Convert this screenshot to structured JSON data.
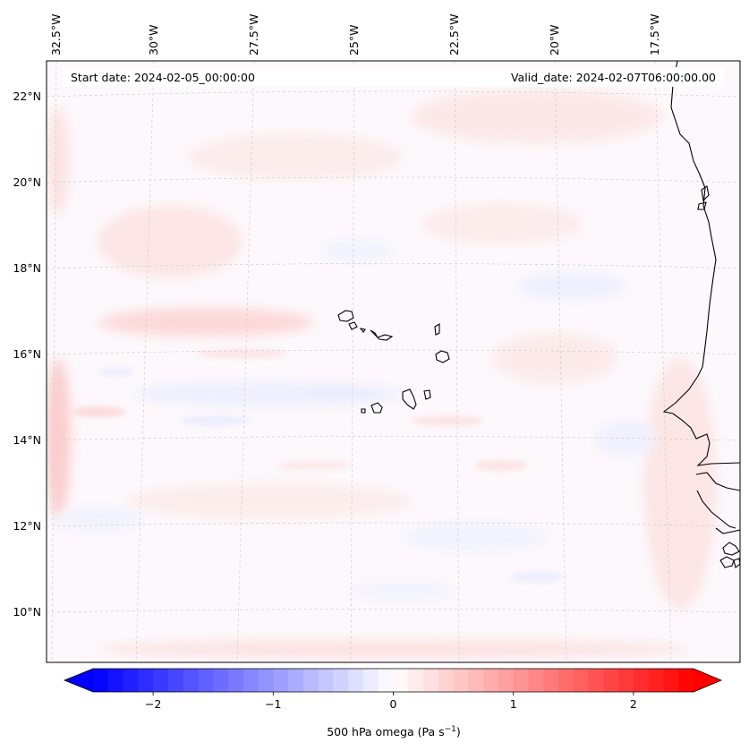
{
  "header": {
    "start_date": "Start date: 2024-02-05_00:00:00",
    "valid_date": "Valid_date: 2024-02-07T06:00:00.00"
  },
  "longitude_labels": [
    "32.5°W",
    "30°W",
    "27.5°W",
    "25°W",
    "22.5°W",
    "20°W",
    "17.5°W"
  ],
  "latitude_labels": [
    "22°N",
    "20°N",
    "18°N",
    "16°N",
    "14°N",
    "12°N",
    "10°N"
  ],
  "colorbar": {
    "ticks": [
      "−2",
      "−1",
      "0",
      "1",
      "2"
    ],
    "tick_values": [
      -2,
      -1,
      0,
      1,
      2
    ],
    "min": -2.5,
    "max": 2.5,
    "label_main": "500 hPa omega (Pa s",
    "label_sup": "−1",
    "label_end": ")",
    "color_low": "#0000ff",
    "color_mid": "#ffffff",
    "color_high": "#ff0000",
    "extend": "both"
  },
  "map": {
    "variable": "500 hPa omega",
    "coastline_color": "#000000",
    "gridline_color": "#b0b0b0"
  }
}
